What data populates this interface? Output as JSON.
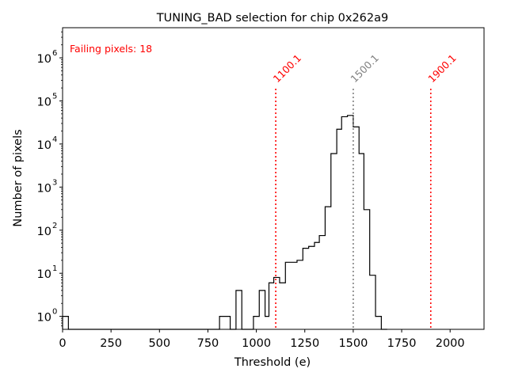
{
  "chart_data": {
    "type": "histogram",
    "title": "TUNING_BAD selection for chip 0x262a9",
    "xlabel": "Threshold (e)",
    "ylabel": "Number of pixels",
    "xlim": [
      0,
      2175
    ],
    "ylim": [
      0.5,
      5000000
    ],
    "yscale": "log",
    "grid": false,
    "x_ticks": [
      0,
      250,
      500,
      750,
      1000,
      1250,
      1500,
      1750,
      2000
    ],
    "y_ticks": [
      {
        "value": 1,
        "base": "10",
        "exp": "0"
      },
      {
        "value": 10,
        "base": "10",
        "exp": "1"
      },
      {
        "value": 100,
        "base": "10",
        "exp": "2"
      },
      {
        "value": 1000,
        "base": "10",
        "exp": "3"
      },
      {
        "value": 10000,
        "base": "10",
        "exp": "4"
      },
      {
        "value": 100000,
        "base": "10",
        "exp": "5"
      },
      {
        "value": 1000000,
        "base": "10",
        "exp": "6"
      }
    ],
    "bins": [
      {
        "x0": 0,
        "x1": 30,
        "count": 1
      },
      {
        "x0": 30,
        "x1": 810,
        "count": 0
      },
      {
        "x0": 810,
        "x1": 865,
        "count": 1
      },
      {
        "x0": 865,
        "x1": 895,
        "count": 0
      },
      {
        "x0": 895,
        "x1": 925,
        "count": 4
      },
      {
        "x0": 925,
        "x1": 985,
        "count": 0
      },
      {
        "x0": 985,
        "x1": 1015,
        "count": 1
      },
      {
        "x0": 1015,
        "x1": 1045,
        "count": 4
      },
      {
        "x0": 1045,
        "x1": 1065,
        "count": 1
      },
      {
        "x0": 1065,
        "x1": 1090,
        "count": 6
      },
      {
        "x0": 1090,
        "x1": 1120,
        "count": 8
      },
      {
        "x0": 1120,
        "x1": 1150,
        "count": 6
      },
      {
        "x0": 1150,
        "x1": 1210,
        "count": 18
      },
      {
        "x0": 1210,
        "x1": 1240,
        "count": 20
      },
      {
        "x0": 1240,
        "x1": 1270,
        "count": 38
      },
      {
        "x0": 1270,
        "x1": 1300,
        "count": 42
      },
      {
        "x0": 1300,
        "x1": 1325,
        "count": 52
      },
      {
        "x0": 1325,
        "x1": 1355,
        "count": 75
      },
      {
        "x0": 1355,
        "x1": 1385,
        "count": 350
      },
      {
        "x0": 1385,
        "x1": 1415,
        "count": 6000
      },
      {
        "x0": 1415,
        "x1": 1440,
        "count": 22000
      },
      {
        "x0": 1440,
        "x1": 1470,
        "count": 43000
      },
      {
        "x0": 1470,
        "x1": 1500,
        "count": 46000
      },
      {
        "x0": 1500,
        "x1": 1530,
        "count": 25000
      },
      {
        "x0": 1530,
        "x1": 1555,
        "count": 6000
      },
      {
        "x0": 1555,
        "x1": 1585,
        "count": 300
      },
      {
        "x0": 1585,
        "x1": 1615,
        "count": 9
      },
      {
        "x0": 1615,
        "x1": 1645,
        "count": 1
      },
      {
        "x0": 1645,
        "x1": 1675,
        "count": 0
      }
    ],
    "vlines": [
      {
        "x": 1100.1,
        "label": "1100.1",
        "color": "#ff0000"
      },
      {
        "x": 1500.1,
        "label": "1500.1",
        "color": "#808080"
      },
      {
        "x": 1900.1,
        "label": "1900.1",
        "color": "#ff0000"
      }
    ],
    "annotation": {
      "text": "Failing pixels: 18",
      "color": "#ff0000"
    }
  }
}
